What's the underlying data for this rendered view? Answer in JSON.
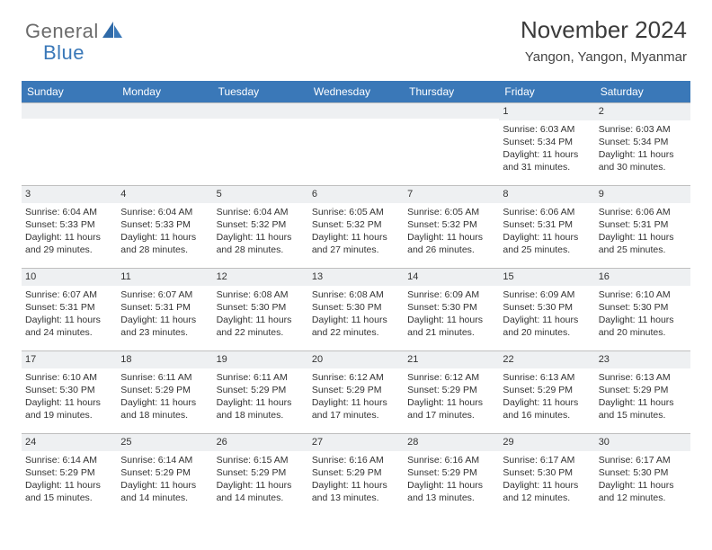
{
  "logo": {
    "general": "General",
    "blue": "Blue"
  },
  "colors": {
    "header_bg": "#3a78b8",
    "daybar_bg": "#eef0f2",
    "border": "#bfbfbf",
    "text": "#333333",
    "logo_gray": "#6b6b6b",
    "logo_blue": "#3a78b8"
  },
  "typography": {
    "month_fontsize": 26,
    "location_fontsize": 15,
    "weekday_fontsize": 12,
    "cell_fontsize": 10.5
  },
  "title": "November 2024",
  "location": "Yangon, Yangon, Myanmar",
  "weekdays": [
    "Sunday",
    "Monday",
    "Tuesday",
    "Wednesday",
    "Thursday",
    "Friday",
    "Saturday"
  ],
  "weeks": [
    [
      null,
      null,
      null,
      null,
      null,
      {
        "n": "1",
        "sr": "Sunrise: 6:03 AM",
        "ss": "Sunset: 5:34 PM",
        "dl1": "Daylight: 11 hours",
        "dl2": "and 31 minutes."
      },
      {
        "n": "2",
        "sr": "Sunrise: 6:03 AM",
        "ss": "Sunset: 5:34 PM",
        "dl1": "Daylight: 11 hours",
        "dl2": "and 30 minutes."
      }
    ],
    [
      {
        "n": "3",
        "sr": "Sunrise: 6:04 AM",
        "ss": "Sunset: 5:33 PM",
        "dl1": "Daylight: 11 hours",
        "dl2": "and 29 minutes."
      },
      {
        "n": "4",
        "sr": "Sunrise: 6:04 AM",
        "ss": "Sunset: 5:33 PM",
        "dl1": "Daylight: 11 hours",
        "dl2": "and 28 minutes."
      },
      {
        "n": "5",
        "sr": "Sunrise: 6:04 AM",
        "ss": "Sunset: 5:32 PM",
        "dl1": "Daylight: 11 hours",
        "dl2": "and 28 minutes."
      },
      {
        "n": "6",
        "sr": "Sunrise: 6:05 AM",
        "ss": "Sunset: 5:32 PM",
        "dl1": "Daylight: 11 hours",
        "dl2": "and 27 minutes."
      },
      {
        "n": "7",
        "sr": "Sunrise: 6:05 AM",
        "ss": "Sunset: 5:32 PM",
        "dl1": "Daylight: 11 hours",
        "dl2": "and 26 minutes."
      },
      {
        "n": "8",
        "sr": "Sunrise: 6:06 AM",
        "ss": "Sunset: 5:31 PM",
        "dl1": "Daylight: 11 hours",
        "dl2": "and 25 minutes."
      },
      {
        "n": "9",
        "sr": "Sunrise: 6:06 AM",
        "ss": "Sunset: 5:31 PM",
        "dl1": "Daylight: 11 hours",
        "dl2": "and 25 minutes."
      }
    ],
    [
      {
        "n": "10",
        "sr": "Sunrise: 6:07 AM",
        "ss": "Sunset: 5:31 PM",
        "dl1": "Daylight: 11 hours",
        "dl2": "and 24 minutes."
      },
      {
        "n": "11",
        "sr": "Sunrise: 6:07 AM",
        "ss": "Sunset: 5:31 PM",
        "dl1": "Daylight: 11 hours",
        "dl2": "and 23 minutes."
      },
      {
        "n": "12",
        "sr": "Sunrise: 6:08 AM",
        "ss": "Sunset: 5:30 PM",
        "dl1": "Daylight: 11 hours",
        "dl2": "and 22 minutes."
      },
      {
        "n": "13",
        "sr": "Sunrise: 6:08 AM",
        "ss": "Sunset: 5:30 PM",
        "dl1": "Daylight: 11 hours",
        "dl2": "and 22 minutes."
      },
      {
        "n": "14",
        "sr": "Sunrise: 6:09 AM",
        "ss": "Sunset: 5:30 PM",
        "dl1": "Daylight: 11 hours",
        "dl2": "and 21 minutes."
      },
      {
        "n": "15",
        "sr": "Sunrise: 6:09 AM",
        "ss": "Sunset: 5:30 PM",
        "dl1": "Daylight: 11 hours",
        "dl2": "and 20 minutes."
      },
      {
        "n": "16",
        "sr": "Sunrise: 6:10 AM",
        "ss": "Sunset: 5:30 PM",
        "dl1": "Daylight: 11 hours",
        "dl2": "and 20 minutes."
      }
    ],
    [
      {
        "n": "17",
        "sr": "Sunrise: 6:10 AM",
        "ss": "Sunset: 5:30 PM",
        "dl1": "Daylight: 11 hours",
        "dl2": "and 19 minutes."
      },
      {
        "n": "18",
        "sr": "Sunrise: 6:11 AM",
        "ss": "Sunset: 5:29 PM",
        "dl1": "Daylight: 11 hours",
        "dl2": "and 18 minutes."
      },
      {
        "n": "19",
        "sr": "Sunrise: 6:11 AM",
        "ss": "Sunset: 5:29 PM",
        "dl1": "Daylight: 11 hours",
        "dl2": "and 18 minutes."
      },
      {
        "n": "20",
        "sr": "Sunrise: 6:12 AM",
        "ss": "Sunset: 5:29 PM",
        "dl1": "Daylight: 11 hours",
        "dl2": "and 17 minutes."
      },
      {
        "n": "21",
        "sr": "Sunrise: 6:12 AM",
        "ss": "Sunset: 5:29 PM",
        "dl1": "Daylight: 11 hours",
        "dl2": "and 17 minutes."
      },
      {
        "n": "22",
        "sr": "Sunrise: 6:13 AM",
        "ss": "Sunset: 5:29 PM",
        "dl1": "Daylight: 11 hours",
        "dl2": "and 16 minutes."
      },
      {
        "n": "23",
        "sr": "Sunrise: 6:13 AM",
        "ss": "Sunset: 5:29 PM",
        "dl1": "Daylight: 11 hours",
        "dl2": "and 15 minutes."
      }
    ],
    [
      {
        "n": "24",
        "sr": "Sunrise: 6:14 AM",
        "ss": "Sunset: 5:29 PM",
        "dl1": "Daylight: 11 hours",
        "dl2": "and 15 minutes."
      },
      {
        "n": "25",
        "sr": "Sunrise: 6:14 AM",
        "ss": "Sunset: 5:29 PM",
        "dl1": "Daylight: 11 hours",
        "dl2": "and 14 minutes."
      },
      {
        "n": "26",
        "sr": "Sunrise: 6:15 AM",
        "ss": "Sunset: 5:29 PM",
        "dl1": "Daylight: 11 hours",
        "dl2": "and 14 minutes."
      },
      {
        "n": "27",
        "sr": "Sunrise: 6:16 AM",
        "ss": "Sunset: 5:29 PM",
        "dl1": "Daylight: 11 hours",
        "dl2": "and 13 minutes."
      },
      {
        "n": "28",
        "sr": "Sunrise: 6:16 AM",
        "ss": "Sunset: 5:29 PM",
        "dl1": "Daylight: 11 hours",
        "dl2": "and 13 minutes."
      },
      {
        "n": "29",
        "sr": "Sunrise: 6:17 AM",
        "ss": "Sunset: 5:30 PM",
        "dl1": "Daylight: 11 hours",
        "dl2": "and 12 minutes."
      },
      {
        "n": "30",
        "sr": "Sunrise: 6:17 AM",
        "ss": "Sunset: 5:30 PM",
        "dl1": "Daylight: 11 hours",
        "dl2": "and 12 minutes."
      }
    ]
  ]
}
